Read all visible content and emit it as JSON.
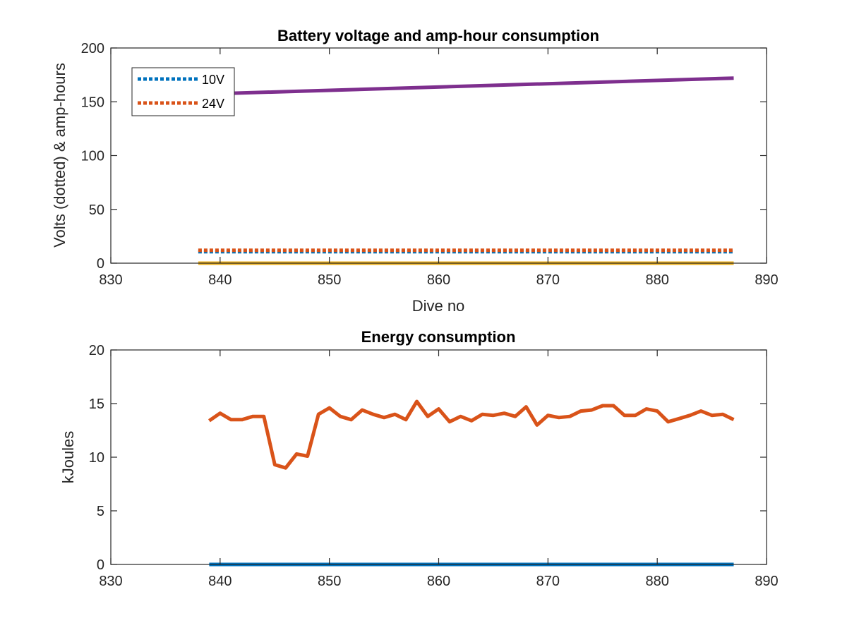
{
  "colors": {
    "v10": "#0072BD",
    "v24": "#D95319",
    "ah10": "#7E2F8E",
    "ah24": "#EDB120",
    "energy1": "#D95319",
    "energy2": "#0072BD",
    "axes": "#262626"
  },
  "chart_data": [
    {
      "type": "line",
      "title": "Battery voltage and amp-hour consumption",
      "xlabel": "Dive no",
      "ylabel": "Volts (dotted) & amp-hours",
      "xlim": [
        830,
        890
      ],
      "ylim": [
        0,
        200
      ],
      "xticks": [
        "830",
        "840",
        "850",
        "860",
        "870",
        "880",
        "890"
      ],
      "yticks": [
        "0",
        "50",
        "100",
        "150",
        "200"
      ],
      "grid": false,
      "legend": {
        "placement": "top-left",
        "entries": [
          "10V",
          "24V"
        ]
      },
      "series": [
        {
          "name": "10V",
          "style": "dotted",
          "color": "#0072BD",
          "x": [
            838,
            887
          ],
          "y": [
            10.6,
            10.6
          ]
        },
        {
          "name": "24V",
          "style": "dotted",
          "color": "#D95319",
          "x": [
            838,
            887
          ],
          "y": [
            12.0,
            12.0
          ]
        },
        {
          "style": "solid",
          "color": "#7E2F8E",
          "x": [
            838,
            887
          ],
          "y": [
            157,
            172
          ]
        },
        {
          "style": "solid",
          "color": "#EDB120",
          "x": [
            838,
            887
          ],
          "y": [
            0,
            0
          ]
        }
      ]
    },
    {
      "type": "line",
      "title": "Energy consumption",
      "xlabel": "",
      "ylabel": "kJoules",
      "xlim": [
        830,
        890
      ],
      "ylim": [
        0,
        20
      ],
      "xticks": [
        "830",
        "840",
        "850",
        "860",
        "870",
        "880",
        "890"
      ],
      "yticks": [
        "0",
        "5",
        "10",
        "15",
        "20"
      ],
      "grid": false,
      "series": [
        {
          "style": "solid",
          "color": "#D95319",
          "x": [
            839,
            840,
            841,
            842,
            843,
            844,
            845,
            846,
            847,
            848,
            849,
            850,
            851,
            852,
            853,
            854,
            855,
            856,
            857,
            858,
            859,
            860,
            861,
            862,
            863,
            864,
            865,
            866,
            867,
            868,
            869,
            870,
            871,
            872,
            873,
            874,
            875,
            876,
            877,
            878,
            879,
            880,
            881,
            882,
            883,
            884,
            885,
            886,
            887
          ],
          "y": [
            13.4,
            14.1,
            13.5,
            13.5,
            13.8,
            13.8,
            9.3,
            9.0,
            10.3,
            10.1,
            14.0,
            14.6,
            13.8,
            13.5,
            14.4,
            14.0,
            13.7,
            14.0,
            13.5,
            15.2,
            13.8,
            14.5,
            13.3,
            13.8,
            13.4,
            14.0,
            13.9,
            14.1,
            13.8,
            14.7,
            13.0,
            13.9,
            13.7,
            13.8,
            14.3,
            14.4,
            14.8,
            14.8,
            13.9,
            13.9,
            14.5,
            14.3,
            13.3,
            13.6,
            13.9,
            14.3,
            13.9,
            14.0,
            13.5
          ]
        },
        {
          "style": "solid",
          "color": "#0072BD",
          "x": [
            839,
            887
          ],
          "y": [
            0,
            0
          ]
        }
      ]
    }
  ]
}
